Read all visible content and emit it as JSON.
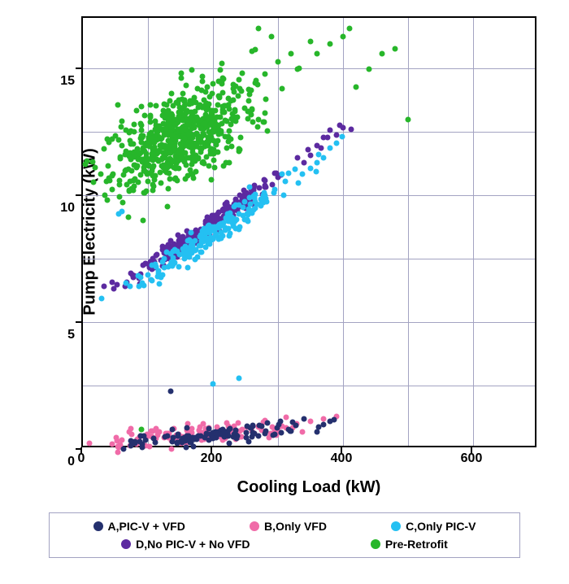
{
  "chart": {
    "type": "scatter",
    "xlabel": "Cooling Load (kW)",
    "ylabel": "Pump Electricity (kW)",
    "xlim": [
      0,
      700
    ],
    "ylim": [
      0,
      17
    ],
    "x_ticks": [
      0,
      200,
      400,
      600
    ],
    "y_ticks": [
      0,
      5,
      10,
      15
    ],
    "x_grid": [
      100,
      200,
      300,
      400,
      500,
      600
    ],
    "y_grid": [
      2.5,
      5,
      7.5,
      10,
      12.5,
      15
    ],
    "background_color": "#ffffff",
    "grid_color": "#a3a3c2",
    "border_color": "#000000",
    "marker_size": 7,
    "label_fontsize": 20,
    "tick_fontsize": 16,
    "series": [
      {
        "name": "Pre-Retrofit",
        "label": "Pre-Retrofit",
        "color": "#27b62a",
        "cluster": {
          "x_center": 150,
          "y_center": 12.5,
          "x_spread": 160,
          "y_spread": 2.6,
          "slope": 0.011,
          "n": 650
        },
        "extra": [
          [
            420,
            14.5
          ],
          [
            440,
            15.2
          ],
          [
            460,
            15.8
          ],
          [
            480,
            16.0
          ],
          [
            500,
            13.2
          ],
          [
            400,
            16.5
          ],
          [
            410,
            16.8
          ],
          [
            380,
            16.2
          ],
          [
            360,
            15.8
          ],
          [
            350,
            16.3
          ],
          [
            330,
            15.2
          ],
          [
            320,
            15.8
          ],
          [
            300,
            15.5
          ],
          [
            290,
            16.5
          ],
          [
            280,
            15.0
          ],
          [
            270,
            16.8
          ],
          [
            260,
            15.9
          ],
          [
            90,
            1.0
          ]
        ]
      },
      {
        "name": "D,No PIC-V + No VFD",
        "label": "D,No PIC-V + No VFD",
        "color": "#5c2aa0",
        "cluster": {
          "x_center": 190,
          "y_center": 9.0,
          "x_spread": 180,
          "y_spread": 0.6,
          "slope": 0.018,
          "n": 220
        },
        "extra": [
          [
            370,
            12.5
          ],
          [
            380,
            12.8
          ],
          [
            390,
            12.6
          ],
          [
            400,
            12.9
          ],
          [
            395,
            13.0
          ],
          [
            360,
            12.2
          ],
          [
            350,
            11.8
          ],
          [
            340,
            11.5
          ],
          [
            53,
            6.7
          ],
          [
            45,
            6.8
          ]
        ]
      },
      {
        "name": "C,Only PIC-V",
        "label": "C,Only PIC-V",
        "color": "#24c0f2",
        "cluster": {
          "x_center": 200,
          "y_center": 8.7,
          "x_spread": 190,
          "y_spread": 0.8,
          "slope": 0.017,
          "n": 200
        },
        "extra": [
          [
            390,
            12.3
          ],
          [
            380,
            12.1
          ],
          [
            370,
            11.7
          ],
          [
            360,
            11.5
          ],
          [
            350,
            11.3
          ],
          [
            240,
            3.0
          ],
          [
            200,
            2.8
          ],
          [
            60,
            9.6
          ],
          [
            55,
            9.5
          ]
        ]
      },
      {
        "name": "B,Only VFD",
        "label": "B,Only VFD",
        "color": "#f06ba8",
        "cluster": {
          "x_center": 180,
          "y_center": 0.8,
          "x_spread": 200,
          "y_spread": 0.6,
          "slope": 0.002,
          "n": 140
        },
        "extra": [
          [
            390,
            1.5
          ],
          [
            370,
            1.4
          ],
          [
            350,
            1.3
          ]
        ]
      },
      {
        "name": "A,PIC-V + VFD",
        "label": "A,PIC-V + VFD",
        "color": "#24306e",
        "cluster": {
          "x_center": 190,
          "y_center": 0.7,
          "x_spread": 200,
          "y_spread": 0.5,
          "slope": 0.0025,
          "n": 110
        },
        "extra": [
          [
            135,
            2.5
          ],
          [
            370,
            1.2
          ],
          [
            360,
            0.9
          ],
          [
            340,
            1.4
          ],
          [
            380,
            1.3
          ]
        ]
      }
    ],
    "legend": {
      "border_color": "#a3a3c2",
      "rows": [
        [
          "A,PIC-V + VFD",
          "B,Only VFD",
          "C,Only PIC-V"
        ],
        [
          "D,No PIC-V + No VFD",
          "Pre-Retrofit"
        ]
      ]
    }
  }
}
